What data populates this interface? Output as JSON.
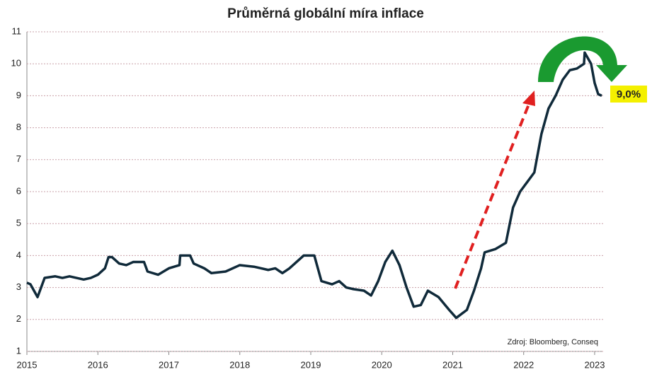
{
  "chart_data": {
    "type": "line",
    "title": "Průměrná globální míra inflace",
    "x": [
      2015.0,
      2015.05,
      2015.1,
      2015.15,
      2015.2,
      2015.25,
      2015.4,
      2015.5,
      2015.6,
      2015.7,
      2015.8,
      2015.9,
      2016.0,
      2016.1,
      2016.15,
      2016.2,
      2016.3,
      2016.4,
      2016.5,
      2016.65,
      2016.7,
      2016.85,
      2017.0,
      2017.15,
      2017.16,
      2017.3,
      2017.35,
      2017.5,
      2017.6,
      2017.8,
      2018.0,
      2018.2,
      2018.3,
      2018.4,
      2018.5,
      2018.6,
      2018.7,
      2018.8,
      2018.9,
      2019.05,
      2019.1,
      2019.15,
      2019.3,
      2019.4,
      2019.5,
      2019.6,
      2019.75,
      2019.85,
      2019.95,
      2020.05,
      2020.15,
      2020.25,
      2020.35,
      2020.45,
      2020.55,
      2020.65,
      2020.8,
      2020.95,
      2021.05,
      2021.2,
      2021.3,
      2021.4,
      2021.45,
      2021.6,
      2021.75,
      2021.85,
      2021.95,
      2022.05,
      2022.15,
      2022.25,
      2022.35,
      2022.45,
      2022.55,
      2022.65,
      2022.75,
      2022.85,
      2022.86,
      2022.95,
      2023.0,
      2023.05,
      2023.1
    ],
    "series": [
      {
        "name": "Průměrná globální míra inflace",
        "color": "#102a3a",
        "values": [
          3.15,
          3.1,
          2.9,
          2.7,
          3.0,
          3.3,
          3.35,
          3.3,
          3.35,
          3.3,
          3.25,
          3.3,
          3.4,
          3.6,
          3.95,
          3.95,
          3.75,
          3.7,
          3.8,
          3.8,
          3.5,
          3.4,
          3.6,
          3.7,
          4.0,
          4.0,
          3.75,
          3.6,
          3.45,
          3.5,
          3.7,
          3.65,
          3.6,
          3.55,
          3.6,
          3.45,
          3.6,
          3.8,
          4.0,
          4.0,
          3.6,
          3.2,
          3.1,
          3.2,
          3.0,
          2.95,
          2.9,
          2.75,
          3.2,
          3.8,
          4.15,
          3.7,
          3.0,
          2.4,
          2.45,
          2.9,
          2.7,
          2.3,
          2.05,
          2.3,
          2.9,
          3.6,
          4.1,
          4.2,
          4.4,
          5.5,
          6.0,
          6.3,
          6.6,
          7.8,
          8.6,
          9.0,
          9.5,
          9.8,
          9.85,
          10.0,
          10.35,
          10.0,
          9.4,
          9.05,
          9.0
        ]
      }
    ],
    "xlim": [
      2015,
      2023.12
    ],
    "xticks": [
      2015,
      2016,
      2017,
      2018,
      2019,
      2020,
      2021,
      2022,
      2023
    ],
    "ylim": [
      1,
      11
    ],
    "yticks": [
      1,
      2,
      3,
      4,
      5,
      6,
      7,
      8,
      9,
      10,
      11
    ],
    "grid": true,
    "annotations": [
      "9,0%",
      "Zdroj: Bloomberg, Conseq"
    ]
  }
}
